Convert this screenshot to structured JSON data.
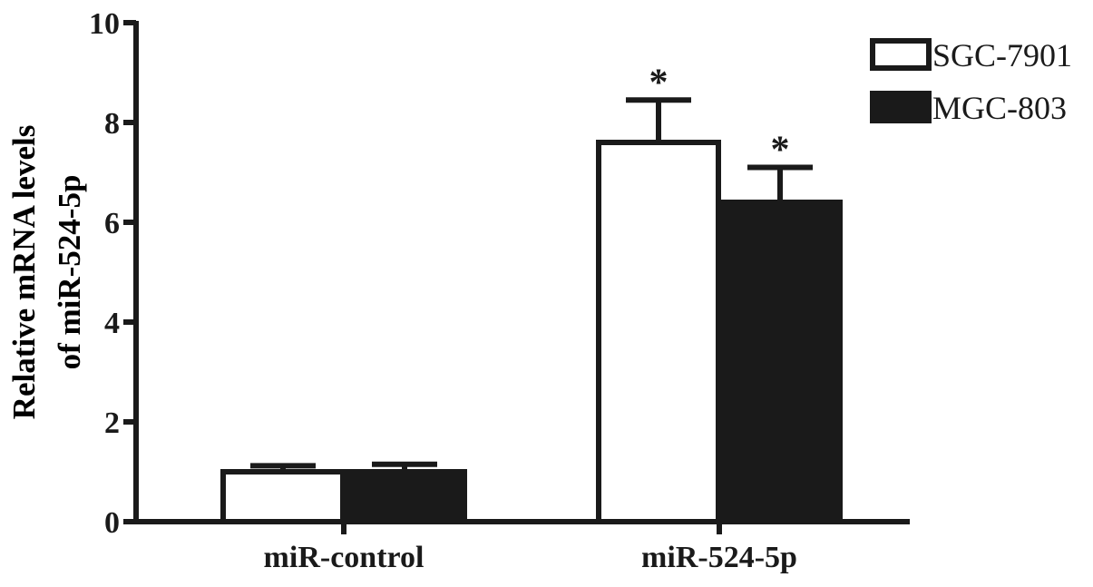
{
  "chart_data": {
    "type": "bar",
    "title": "",
    "ylabel_lines": [
      "Relative mRNA levels",
      "of miR-524-5p"
    ],
    "xlabel": "",
    "categories": [
      "miR-control",
      "miR-524-5p"
    ],
    "series": [
      {
        "name": "SGC-7901",
        "values": [
          1.0,
          7.6
        ],
        "errors": [
          0.12,
          0.85
        ],
        "fill": "#ffffff",
        "significance": [
          "",
          "*"
        ]
      },
      {
        "name": "MGC-803",
        "values": [
          1.0,
          6.4
        ],
        "errors": [
          0.15,
          0.7
        ],
        "fill": "#1a1a1a",
        "significance": [
          "",
          "*"
        ]
      }
    ],
    "ylim": [
      0,
      10
    ],
    "yticks": [
      0,
      2,
      4,
      6,
      8,
      10
    ],
    "grid": false,
    "legend_position": "top-right",
    "colors": {
      "stroke": "#1a1a1a",
      "background": "#ffffff"
    }
  }
}
